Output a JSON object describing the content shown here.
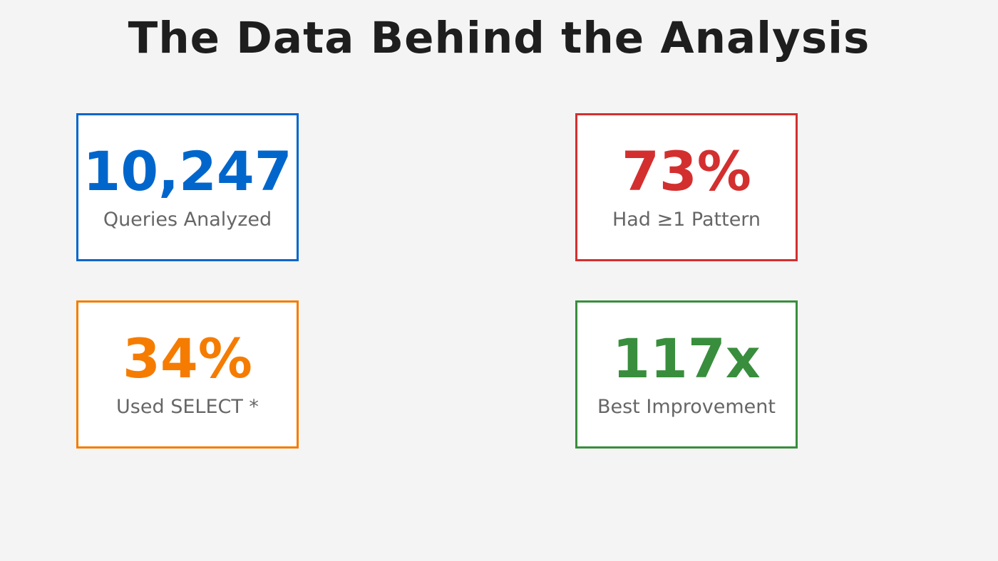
{
  "title": "The Data Behind the Analysis",
  "cards": [
    {
      "value": "10,247",
      "label": "Queries Analyzed",
      "color": "#0066cc"
    },
    {
      "value": "73%",
      "label": "Had ≥1 Pattern",
      "color": "#d32f2f"
    },
    {
      "value": "34%",
      "label": "Used SELECT *",
      "color": "#f57c00"
    },
    {
      "value": "117x",
      "label": "Best Improvement",
      "color": "#388e3c"
    }
  ]
}
